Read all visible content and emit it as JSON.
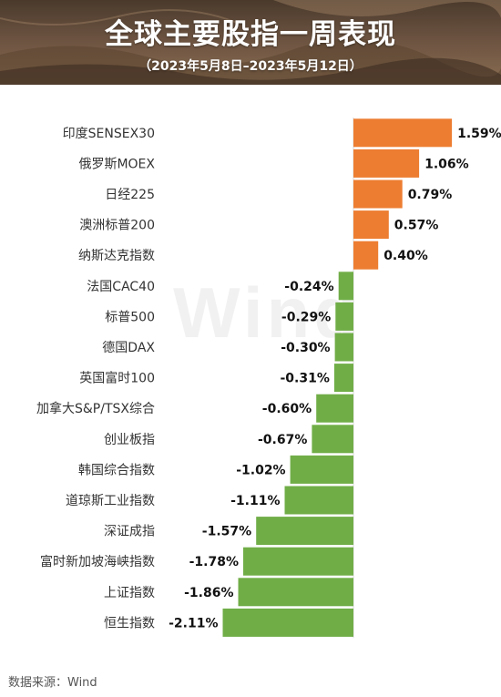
{
  "header": {
    "title": "全球主要股指一周表现",
    "subtitle": "（2023年5月8日–2023年5月12日）"
  },
  "watermark": "Wind",
  "source": "数据来源：Wind",
  "colors": {
    "positive": "#ed7d31",
    "negative": "#70ad47"
  },
  "chart_data": {
    "type": "bar",
    "orientation": "horizontal",
    "categories": [
      "印度SENSEX30",
      "俄罗斯MOEX",
      "日经225",
      "澳洲标普200",
      "纳斯达克指数",
      "法国CAC40",
      "标普500",
      "德国DAX",
      "英国富时100",
      "加拿大S&P/TSX综合",
      "创业板指",
      "韩国综合指数",
      "道琼斯工业指数",
      "深证成指",
      "富时新加坡海峡指数",
      "上证指数",
      "恒生指数"
    ],
    "values": [
      1.59,
      1.06,
      0.79,
      0.57,
      0.4,
      -0.24,
      -0.29,
      -0.3,
      -0.31,
      -0.6,
      -0.67,
      -1.02,
      -1.11,
      -1.57,
      -1.78,
      -1.86,
      -2.11
    ],
    "labels": [
      "1.59%",
      "1.06%",
      "0.79%",
      "0.57%",
      "0.40%",
      "-0.24%",
      "-0.29%",
      "-0.30%",
      "-0.31%",
      "-0.60%",
      "-0.67%",
      "-1.02%",
      "-1.11%",
      "-1.57%",
      "-1.78%",
      "-1.86%",
      "-2.11%"
    ],
    "unit": "%",
    "xlim": [
      -2.11,
      1.59
    ],
    "grid": false,
    "legend": "none"
  }
}
